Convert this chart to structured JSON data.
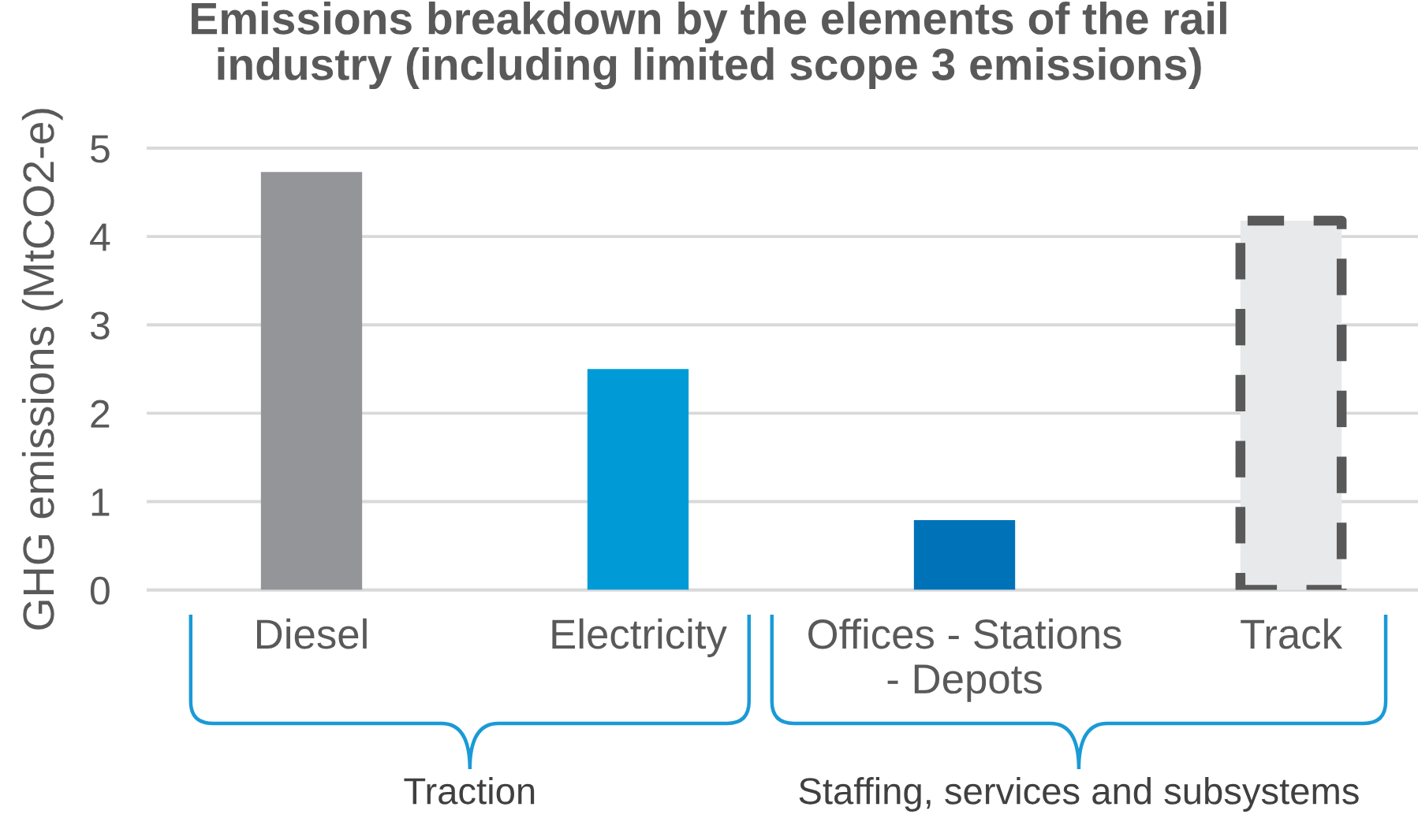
{
  "chart_data": {
    "type": "bar",
    "title": "Emissions breakdown by the elements of the rail\nindustry (including limited scope 3 emissions)",
    "ylabel": "GHG emissions (MtCO2-e)",
    "categories": [
      "Diesel",
      "Electricity",
      "Offices - Stations\n- Depots",
      "Track"
    ],
    "series": [
      {
        "colors": [
          "#939598",
          "#009bd7",
          "#0072b8",
          null
        ],
        "values": [
          4.73,
          2.5,
          0.79,
          null
        ]
      },
      {
        "color": "#e8e9ea",
        "line_style": "dashed",
        "values": [
          null,
          null,
          null,
          4.18
        ]
      }
    ],
    "ylim": [
      0,
      5
    ],
    "yticks": [
      0,
      1,
      2,
      3,
      4,
      5
    ],
    "grid": "y",
    "annotations": [
      "Traction",
      "Staffing, services and subsystems"
    ]
  }
}
